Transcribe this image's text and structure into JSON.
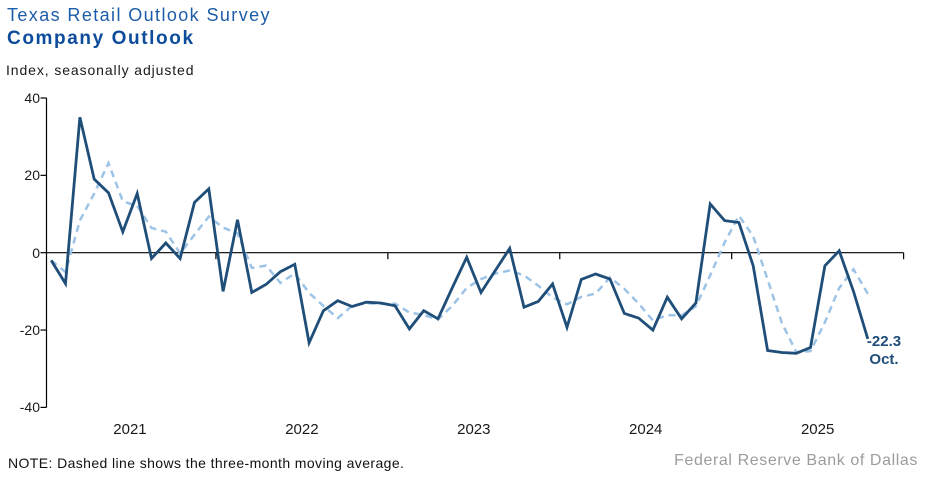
{
  "header": {
    "title_line1": "Texas Retail Outlook Survey",
    "title_line2": "Company Outlook",
    "subtitle": "Index, seasonally adjusted"
  },
  "annotation": {
    "value": "-22.3",
    "month": "Oct."
  },
  "footer": {
    "note": "NOTE: Dashed line shows the three-month moving average.",
    "source": "Federal Reserve Bank of Dallas"
  },
  "colors": {
    "title_line1": "#1C5CA8",
    "title_line2": "#0D4C9B",
    "line": "#1F4E79",
    "moving_average": "#9DC3E6",
    "annotation": "#1F4E79",
    "axis": "#000000",
    "source_text": "#9C9C9C"
  },
  "chart_data": {
    "type": "line",
    "title": "Texas Retail Outlook Survey — Company Outlook",
    "ylabel": "Index, seasonally adjusted",
    "ylim": [
      -40,
      40
    ],
    "y_ticks": [
      40,
      20,
      0,
      -20,
      -40
    ],
    "x_year_labels": [
      "2021",
      "2022",
      "2023",
      "2024",
      "2025"
    ],
    "grid": false,
    "legend": "none (dashed = three-month moving average, per note)",
    "months": [
      "2021-01",
      "2021-02",
      "2021-03",
      "2021-04",
      "2021-05",
      "2021-06",
      "2021-07",
      "2021-08",
      "2021-09",
      "2021-10",
      "2021-11",
      "2021-12",
      "2022-01",
      "2022-02",
      "2022-03",
      "2022-04",
      "2022-05",
      "2022-06",
      "2022-07",
      "2022-08",
      "2022-09",
      "2022-10",
      "2022-11",
      "2022-12",
      "2023-01",
      "2023-02",
      "2023-03",
      "2023-04",
      "2023-05",
      "2023-06",
      "2023-07",
      "2023-08",
      "2023-09",
      "2023-10",
      "2023-11",
      "2023-12",
      "2024-01",
      "2024-02",
      "2024-03",
      "2024-04",
      "2024-05",
      "2024-06",
      "2024-07",
      "2024-08",
      "2024-09",
      "2024-10",
      "2024-11",
      "2024-12",
      "2025-01",
      "2025-02",
      "2025-03",
      "2025-04",
      "2025-05",
      "2025-06",
      "2025-07",
      "2025-08",
      "2025-09",
      "2025-10"
    ],
    "series": [
      {
        "name": "Company outlook index",
        "style": "solid",
        "values": [
          -2,
          -8,
          35,
          19,
          15.5,
          5.4,
          15.3,
          -1.5,
          2.5,
          -1.5,
          13,
          16.5,
          -10,
          8.5,
          -10.3,
          -8.2,
          -4.9,
          -3,
          -23.3,
          -15,
          -12.4,
          -13.9,
          -12.8,
          -13,
          -13.7,
          -19.7,
          -15,
          -17.1,
          -9,
          -1.2,
          -10.3,
          -4.6,
          1.1,
          -14.1,
          -12.6,
          -8.1,
          -19.3,
          -6.9,
          -5.5,
          -6.8,
          -15.7,
          -16.9,
          -20,
          -11.5,
          -17.1,
          -13,
          12.6,
          8.3,
          7.8,
          -3.4,
          -25.3,
          -25.8,
          -26,
          -24.5,
          -3.4,
          0.5,
          -10,
          -22.3
        ]
      },
      {
        "name": "Three-month moving average",
        "style": "dashed",
        "derived": "computed as trailing 3-month mean of the solid series"
      }
    ],
    "last_point_label": {
      "value": -22.3,
      "month": "Oct."
    }
  }
}
